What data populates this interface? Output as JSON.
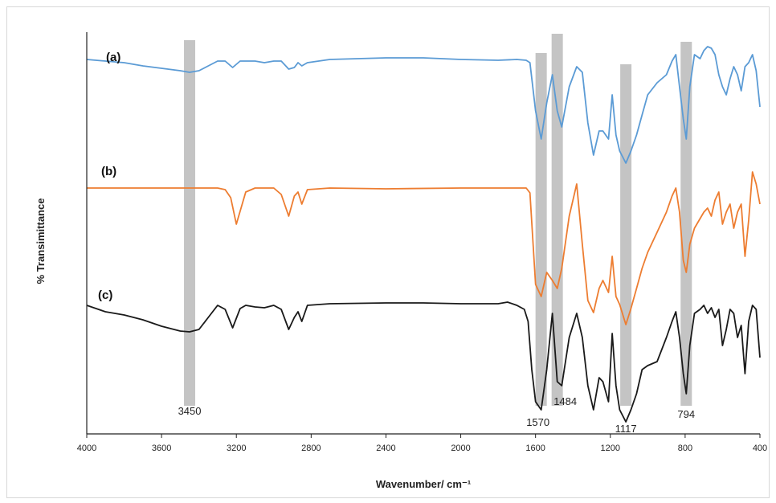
{
  "chart_data": {
    "type": "line",
    "xlabel": "Wavenumber/ cm⁻¹",
    "ylabel": "% Transimittance",
    "xlim": [
      4000,
      400
    ],
    "x_reversed": true,
    "x_ticks": [
      4000,
      3600,
      3200,
      2800,
      2400,
      2000,
      1600,
      1200,
      800,
      400
    ],
    "y_ticks_shown": false,
    "grid": false,
    "highlighted_bands": [
      {
        "center": 3450,
        "label": "3450"
      },
      {
        "center": 1570,
        "label": "1570"
      },
      {
        "center": 1484,
        "label": "1484"
      },
      {
        "center": 1117,
        "label": "1117"
      },
      {
        "center": 794,
        "label": "794"
      }
    ],
    "band_color": "#c4c4c4",
    "series": [
      {
        "name": "(a)",
        "color": "#5b9bd5",
        "x": [
          4000,
          3900,
          3800,
          3700,
          3600,
          3500,
          3450,
          3400,
          3350,
          3300,
          3260,
          3220,
          3180,
          3150,
          3100,
          3050,
          3000,
          2960,
          2920,
          2890,
          2870,
          2850,
          2820,
          2700,
          2400,
          2200,
          2000,
          1800,
          1700,
          1650,
          1630,
          1600,
          1570,
          1540,
          1510,
          1484,
          1460,
          1420,
          1380,
          1350,
          1320,
          1290,
          1260,
          1240,
          1210,
          1190,
          1170,
          1150,
          1117,
          1090,
          1060,
          1030,
          1000,
          950,
          900,
          870,
          850,
          830,
          810,
          794,
          775,
          750,
          720,
          700,
          680,
          660,
          640,
          620,
          600,
          580,
          560,
          540,
          520,
          500,
          480,
          460,
          440,
          420,
          400
        ],
        "y": [
          0.14,
          0.12,
          0.1,
          0.06,
          0.03,
          0.0,
          -0.02,
          0.0,
          0.06,
          0.12,
          0.12,
          0.04,
          0.12,
          0.12,
          0.12,
          0.1,
          0.12,
          0.12,
          0.02,
          0.04,
          0.1,
          0.06,
          0.1,
          0.14,
          0.16,
          0.16,
          0.14,
          0.13,
          0.14,
          0.13,
          0.1,
          -0.5,
          -0.85,
          -0.4,
          -0.05,
          -0.5,
          -0.7,
          -0.2,
          0.05,
          -0.02,
          -0.65,
          -1.05,
          -0.75,
          -0.75,
          -0.85,
          -0.3,
          -0.8,
          -1.0,
          -1.15,
          -1.0,
          -0.8,
          -0.55,
          -0.3,
          -0.15,
          -0.05,
          0.12,
          0.2,
          -0.2,
          -0.6,
          -0.85,
          -0.2,
          0.2,
          0.15,
          0.25,
          0.3,
          0.28,
          0.2,
          -0.05,
          -0.2,
          -0.3,
          -0.1,
          0.05,
          -0.05,
          -0.25,
          0.05,
          0.1,
          0.2,
          0.0,
          -0.45
        ]
      },
      {
        "name": "(b)",
        "color": "#ed7d31",
        "x": [
          4000,
          3800,
          3600,
          3450,
          3300,
          3260,
          3230,
          3200,
          3150,
          3100,
          3000,
          2960,
          2920,
          2890,
          2870,
          2850,
          2820,
          2700,
          2400,
          2000,
          1800,
          1700,
          1650,
          1630,
          1600,
          1570,
          1540,
          1510,
          1484,
          1460,
          1420,
          1380,
          1350,
          1320,
          1290,
          1260,
          1240,
          1210,
          1190,
          1170,
          1150,
          1117,
          1090,
          1060,
          1030,
          1000,
          950,
          900,
          870,
          850,
          830,
          810,
          794,
          775,
          750,
          700,
          680,
          660,
          640,
          620,
          600,
          580,
          560,
          540,
          520,
          500,
          480,
          460,
          440,
          420,
          400
        ],
        "y": [
          0.0,
          0.0,
          0.0,
          0.0,
          0.0,
          -0.02,
          -0.12,
          -0.45,
          -0.05,
          0.0,
          0.0,
          -0.08,
          -0.35,
          -0.1,
          -0.05,
          -0.2,
          -0.02,
          0.0,
          -0.01,
          0.0,
          0.0,
          0.0,
          0.0,
          -0.06,
          -1.2,
          -1.35,
          -1.05,
          -1.15,
          -1.25,
          -1.0,
          -0.35,
          0.05,
          -0.7,
          -1.4,
          -1.55,
          -1.25,
          -1.15,
          -1.3,
          -0.85,
          -1.35,
          -1.45,
          -1.7,
          -1.5,
          -1.25,
          -1.0,
          -0.8,
          -0.55,
          -0.3,
          -0.1,
          0.0,
          -0.3,
          -0.9,
          -1.05,
          -0.7,
          -0.5,
          -0.3,
          -0.25,
          -0.35,
          -0.15,
          -0.05,
          -0.45,
          -0.3,
          -0.2,
          -0.5,
          -0.3,
          -0.2,
          -0.85,
          -0.4,
          0.2,
          0.05,
          -0.2
        ]
      },
      {
        "name": "(c)",
        "color": "#1a1a1a",
        "x": [
          4000,
          3900,
          3800,
          3700,
          3600,
          3500,
          3450,
          3400,
          3350,
          3300,
          3260,
          3220,
          3180,
          3150,
          3100,
          3050,
          3000,
          2960,
          2920,
          2890,
          2870,
          2850,
          2820,
          2700,
          2400,
          2200,
          2000,
          1800,
          1750,
          1700,
          1660,
          1640,
          1620,
          1600,
          1570,
          1540,
          1510,
          1484,
          1460,
          1420,
          1380,
          1350,
          1320,
          1290,
          1260,
          1240,
          1210,
          1190,
          1170,
          1150,
          1117,
          1090,
          1060,
          1030,
          1000,
          950,
          900,
          870,
          850,
          830,
          810,
          794,
          775,
          750,
          720,
          700,
          680,
          660,
          640,
          620,
          600,
          580,
          560,
          540,
          520,
          500,
          480,
          460,
          440,
          420,
          400
        ],
        "y": [
          0.0,
          -0.08,
          -0.12,
          -0.18,
          -0.26,
          -0.32,
          -0.33,
          -0.3,
          -0.15,
          0.0,
          -0.05,
          -0.28,
          -0.04,
          0.0,
          -0.02,
          -0.03,
          0.0,
          -0.05,
          -0.3,
          -0.15,
          -0.08,
          -0.2,
          0.0,
          0.02,
          0.03,
          0.03,
          0.02,
          0.02,
          0.04,
          0.0,
          -0.05,
          -0.2,
          -0.8,
          -1.2,
          -1.3,
          -0.8,
          -0.1,
          -0.95,
          -1.0,
          -0.4,
          -0.1,
          -0.4,
          -1.0,
          -1.3,
          -0.9,
          -0.95,
          -1.2,
          -0.35,
          -1.0,
          -1.3,
          -1.45,
          -1.3,
          -1.1,
          -0.8,
          -0.75,
          -0.7,
          -0.4,
          -0.2,
          -0.08,
          -0.4,
          -0.85,
          -1.1,
          -0.5,
          -0.1,
          -0.05,
          0.0,
          -0.1,
          -0.03,
          -0.15,
          -0.05,
          -0.5,
          -0.3,
          -0.05,
          -0.1,
          -0.4,
          -0.25,
          -0.85,
          -0.2,
          0.0,
          -0.05,
          -0.65
        ]
      }
    ]
  }
}
